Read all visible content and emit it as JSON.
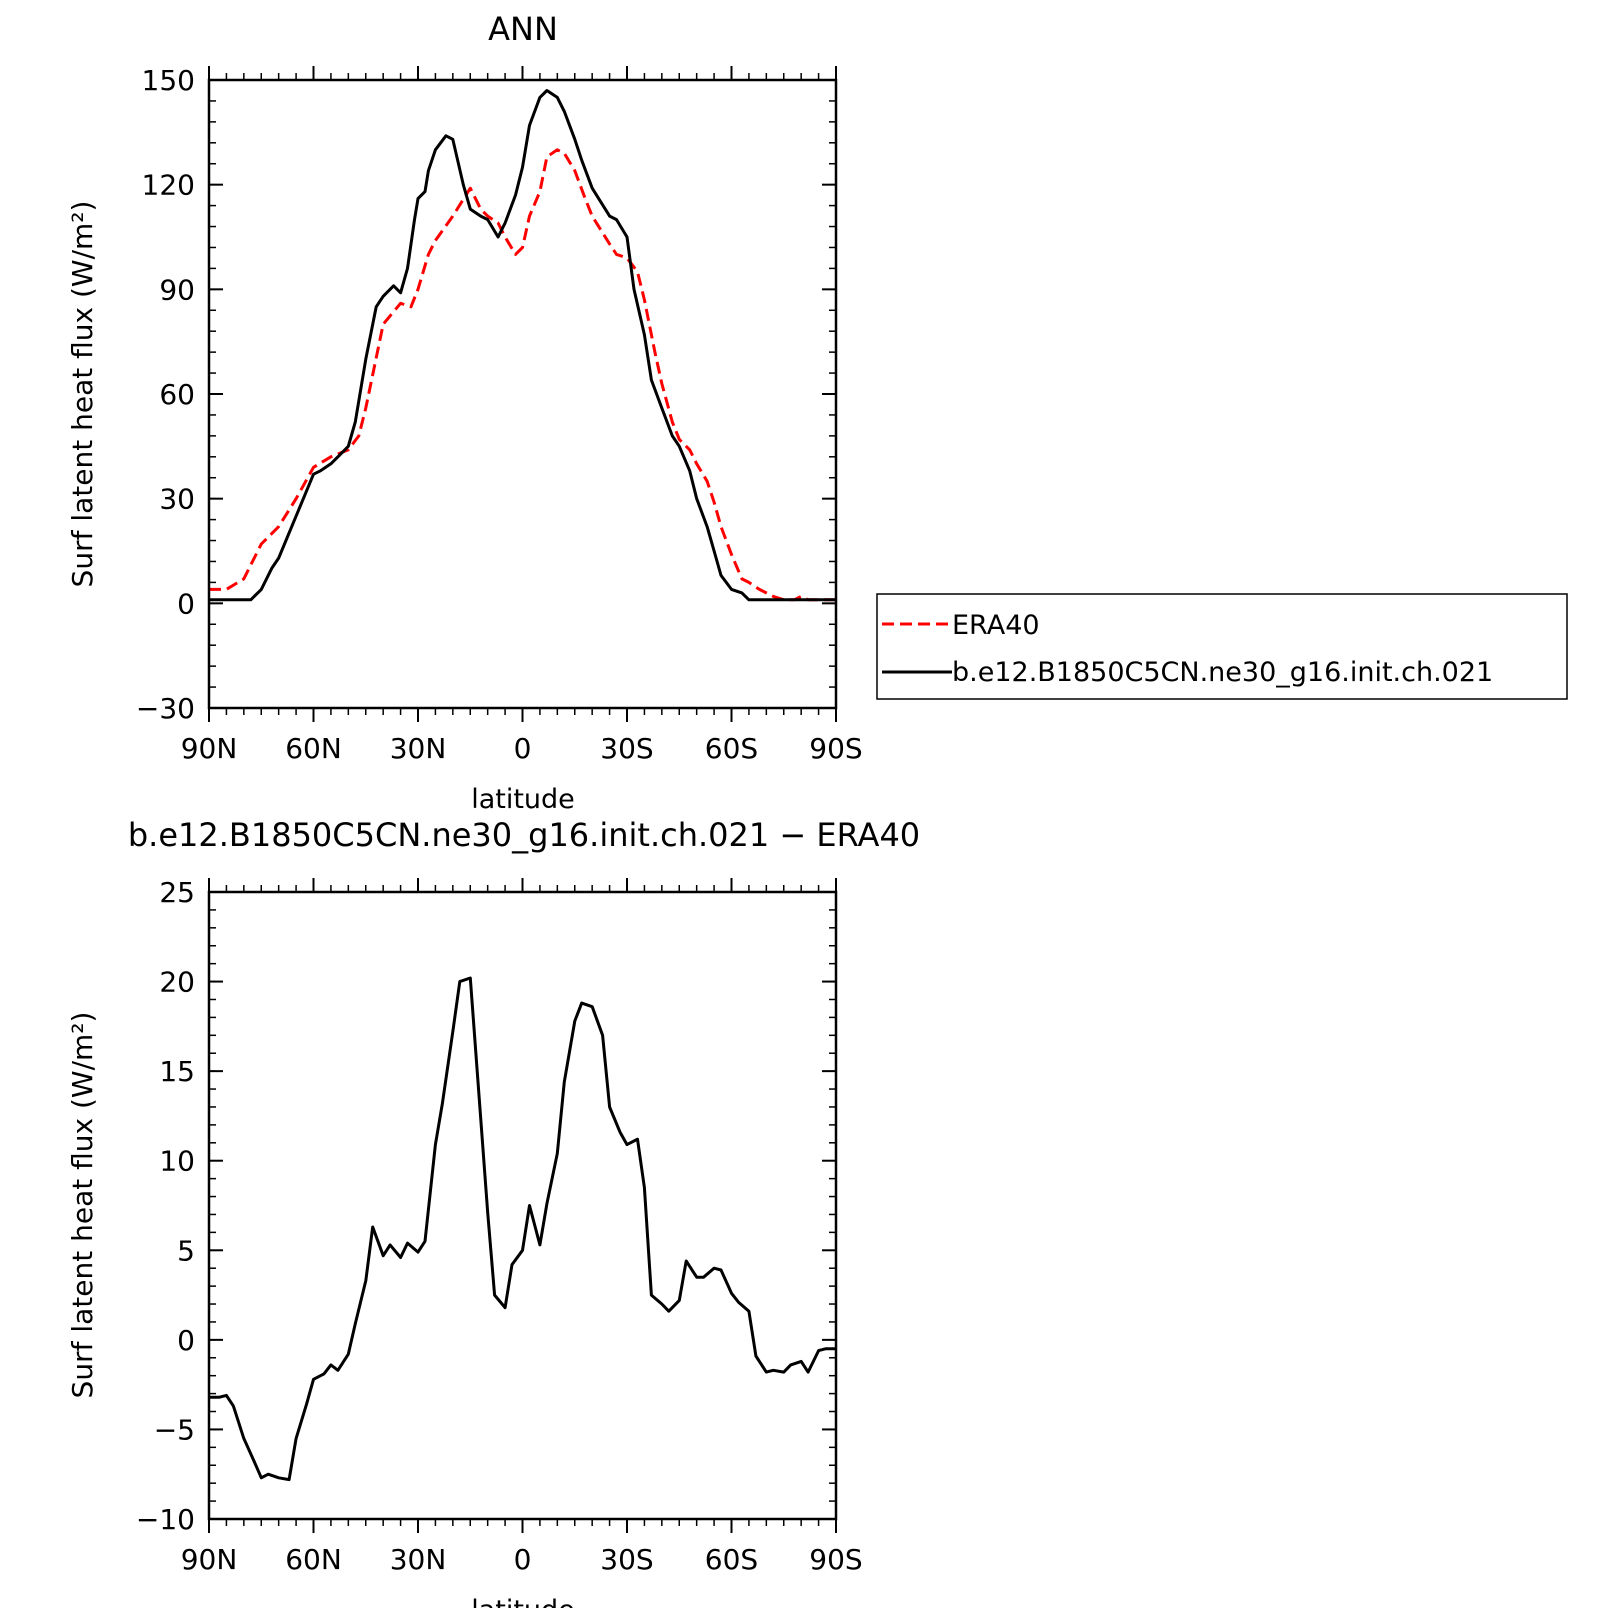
{
  "chart_data": [
    {
      "type": "line",
      "title": "ANN",
      "xlabel": "latitude",
      "ylabel": "Surf latent heat flux (W/m²)",
      "ylim": [
        -30,
        150
      ],
      "yticks": [
        -30,
        0,
        30,
        60,
        90,
        120,
        150
      ],
      "xlim": [
        90,
        -90
      ],
      "xticks": [
        90,
        60,
        30,
        0,
        -30,
        -60,
        -90
      ],
      "xtick_labels": [
        "90N",
        "60N",
        "30N",
        "0",
        "30S",
        "60S",
        "90S"
      ],
      "legend": {
        "position": "right"
      },
      "series": [
        {
          "name": "ERA40",
          "color": "#ff0000",
          "dash": "dashed",
          "x": [
            90,
            85,
            80,
            75,
            70,
            65,
            60,
            55,
            50,
            47,
            45,
            40,
            35,
            32,
            30,
            27,
            25,
            20,
            15,
            12,
            10,
            7,
            5,
            2,
            0,
            -2,
            -5,
            -7,
            -10,
            -12,
            -15,
            -18,
            -20,
            -25,
            -27,
            -30,
            -33,
            -35,
            -38,
            -40,
            -43,
            -45,
            -48,
            -50,
            -53,
            -55,
            -57,
            -60,
            -63,
            -65,
            -68,
            -70,
            -72,
            -75,
            -78,
            -80,
            -82,
            -84,
            -86,
            -88,
            -90
          ],
          "y": [
            4,
            4,
            7,
            17,
            22,
            30,
            39,
            42,
            44,
            48,
            56,
            80,
            86,
            85,
            90,
            100,
            104,
            111,
            119,
            113,
            111,
            109,
            105,
            100,
            102,
            111,
            118,
            128,
            130,
            129,
            124,
            116,
            111,
            103,
            100,
            99,
            95,
            87,
            72,
            63,
            52,
            47,
            44,
            40,
            35,
            29,
            22,
            14,
            7,
            6,
            4,
            3,
            2,
            1,
            1,
            2,
            1,
            1,
            1,
            1,
            1
          ]
        },
        {
          "name": "b.e12.B1850C5CN.ne30_g16.init.ch.021",
          "color": "#000000",
          "dash": "solid",
          "x": [
            90,
            87,
            85,
            80,
            78,
            75,
            72,
            70,
            65,
            60,
            58,
            55,
            52,
            50,
            48,
            45,
            42,
            40,
            37,
            35,
            33,
            31,
            30,
            28,
            27,
            25,
            22,
            20,
            17,
            15,
            12,
            10,
            7,
            5,
            2,
            0,
            -2,
            -5,
            -7,
            -10,
            -12,
            -15,
            -17,
            -20,
            -25,
            -27,
            -30,
            -32,
            -35,
            -37,
            -40,
            -43,
            -45,
            -48,
            -50,
            -53,
            -55,
            -57,
            -60,
            -63,
            -65,
            -68,
            -70,
            -72,
            -75,
            -78,
            -80,
            -82,
            -84,
            -86,
            -88,
            -90
          ],
          "y": [
            1,
            1,
            1,
            1,
            1,
            4,
            10,
            13,
            25,
            37,
            38,
            40,
            43,
            45,
            52,
            70,
            85,
            88,
            91,
            89,
            96,
            110,
            116,
            118,
            124,
            130,
            134,
            133,
            120,
            113,
            111,
            110,
            105,
            109,
            117,
            125,
            137,
            145,
            147,
            145,
            141,
            133,
            127,
            119,
            111,
            110,
            105,
            90,
            77,
            64,
            56,
            48,
            45,
            38,
            30,
            22,
            15,
            8,
            4,
            3,
            1,
            1,
            1,
            1,
            1,
            1,
            1,
            1,
            1,
            1,
            1,
            1
          ]
        }
      ]
    },
    {
      "type": "line",
      "title": "b.e12.B1850C5CN.ne30_g16.init.ch.021 − ERA40",
      "xlabel": "latitude",
      "ylabel": "Surf latent heat flux (W/m²)",
      "ylim": [
        -10,
        25
      ],
      "yticks": [
        -10,
        -5,
        0,
        5,
        10,
        15,
        20,
        25
      ],
      "xlim": [
        90,
        -90
      ],
      "xticks": [
        90,
        60,
        30,
        0,
        -30,
        -60,
        -90
      ],
      "xtick_labels": [
        "90N",
        "60N",
        "30N",
        "0",
        "30S",
        "60S",
        "90S"
      ],
      "series": [
        {
          "color": "#000000",
          "dash": "solid",
          "x": [
            90,
            87,
            85,
            83,
            80,
            77,
            75,
            73,
            70,
            67,
            65,
            62,
            60,
            57,
            55,
            53,
            50,
            48,
            45,
            43,
            40,
            38,
            35,
            33,
            30,
            28,
            25,
            23,
            20,
            18,
            15,
            13,
            10,
            8,
            5,
            3,
            0,
            -2,
            -5,
            -7,
            -10,
            -12,
            -15,
            -17,
            -20,
            -23,
            -25,
            -28,
            -30,
            -33,
            -35,
            -37,
            -40,
            -42,
            -45,
            -47,
            -50,
            -52,
            -55,
            -57,
            -60,
            -62,
            -65,
            -67,
            -70,
            -72,
            -75,
            -77,
            -80,
            -82,
            -85,
            -87,
            -90
          ],
          "y": [
            -3.2,
            -3.2,
            -3.1,
            -3.7,
            -5.5,
            -6.8,
            -7.7,
            -7.5,
            -7.7,
            -7.8,
            -5.5,
            -3.6,
            -2.2,
            -1.9,
            -1.4,
            -1.7,
            -0.8,
            0.9,
            3.3,
            6.3,
            4.7,
            5.3,
            4.6,
            5.4,
            4.9,
            5.5,
            10.9,
            13.2,
            17.2,
            20.0,
            20.2,
            15.0,
            7.1,
            2.5,
            1.8,
            4.2,
            5.0,
            7.5,
            5.3,
            7.6,
            10.4,
            14.4,
            17.8,
            18.8,
            18.6,
            17.0,
            13.0,
            11.6,
            10.9,
            11.2,
            8.5,
            2.5,
            2.0,
            1.6,
            2.2,
            4.4,
            3.5,
            3.5,
            4.0,
            3.9,
            2.6,
            2.1,
            1.6,
            -0.9,
            -1.8,
            -1.7,
            -1.8,
            -1.4,
            -1.2,
            -1.8,
            -0.6,
            -0.5,
            -0.5
          ]
        }
      ]
    }
  ]
}
